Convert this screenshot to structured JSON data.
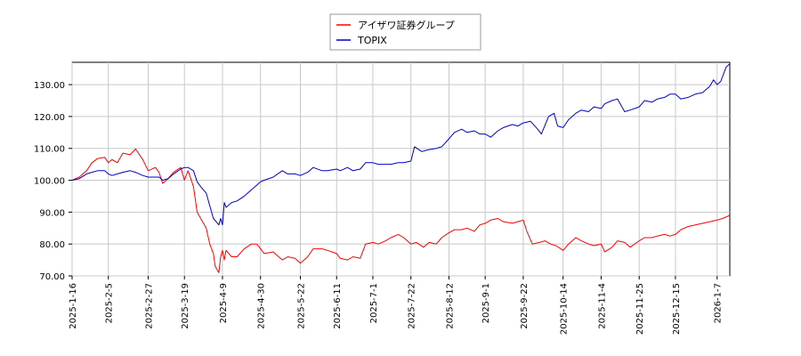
{
  "chart_data": {
    "type": "line",
    "title": "",
    "xlabel": "",
    "ylabel": "",
    "ylim": [
      70,
      137
    ],
    "grid": true,
    "legend_position": "top-center",
    "x_ticks": [
      "2025-1-16",
      "2025-2-5",
      "2025-2-27",
      "2025-3-19",
      "2025-4-9",
      "2025-4-30",
      "2025-5-22",
      "2025-6-11",
      "2025-7-1",
      "2025-7-22",
      "2025-8-12",
      "2025-9-1",
      "2025-9-22",
      "2025-10-14",
      "2025-11-4",
      "2025-11-25",
      "2025-12-15",
      "2026-1-7"
    ],
    "y_ticks": [
      "70.00",
      "80.00",
      "90.00",
      "100.00",
      "110.00",
      "120.00",
      "130.00"
    ],
    "series": [
      {
        "name": "アイザワ証券グループ",
        "color": "#ff0000",
        "points": [
          [
            "2025-1-16",
            100
          ],
          [
            "2025-1-20",
            101
          ],
          [
            "2025-1-24",
            103
          ],
          [
            "2025-1-27",
            105.5
          ],
          [
            "2025-1-30",
            106.8
          ],
          [
            "2025-2-3",
            107.2
          ],
          [
            "2025-2-5",
            105.5
          ],
          [
            "2025-2-7",
            106.5
          ],
          [
            "2025-2-10",
            105.5
          ],
          [
            "2025-2-13",
            108.5
          ],
          [
            "2025-2-17",
            108
          ],
          [
            "2025-2-20",
            109.8
          ],
          [
            "2025-2-24",
            106.5
          ],
          [
            "2025-2-27",
            103
          ],
          [
            "2025-3-3",
            104
          ],
          [
            "2025-3-5",
            102.5
          ],
          [
            "2025-3-7",
            99
          ],
          [
            "2025-3-10",
            100.5
          ],
          [
            "2025-3-13",
            102.5
          ],
          [
            "2025-3-17",
            104
          ],
          [
            "2025-3-19",
            100
          ],
          [
            "2025-3-21",
            103
          ],
          [
            "2025-3-24",
            98
          ],
          [
            "2025-3-26",
            90
          ],
          [
            "2025-3-28",
            88
          ],
          [
            "2025-3-31",
            85
          ],
          [
            "2025-4-2",
            80
          ],
          [
            "2025-4-4",
            77
          ],
          [
            "2025-4-5",
            73
          ],
          [
            "2025-4-7",
            71
          ],
          [
            "2025-4-8",
            76
          ],
          [
            "2025-4-9",
            78
          ],
          [
            "2025-4-10",
            75
          ],
          [
            "2025-4-11",
            78
          ],
          [
            "2025-4-14",
            76
          ],
          [
            "2025-4-17",
            76
          ],
          [
            "2025-4-21",
            78.5
          ],
          [
            "2025-4-25",
            80
          ],
          [
            "2025-4-28",
            80
          ],
          [
            "2025-4-30",
            78.5
          ],
          [
            "2025-5-2",
            77
          ],
          [
            "2025-5-7",
            77.5
          ],
          [
            "2025-5-12",
            75
          ],
          [
            "2025-5-15",
            76
          ],
          [
            "2025-5-19",
            75.5
          ],
          [
            "2025-5-22",
            74
          ],
          [
            "2025-5-26",
            76
          ],
          [
            "2025-5-29",
            78.5
          ],
          [
            "2025-6-3",
            78.5
          ],
          [
            "2025-6-6",
            78
          ],
          [
            "2025-6-11",
            77
          ],
          [
            "2025-6-13",
            75.5
          ],
          [
            "2025-6-17",
            75
          ],
          [
            "2025-6-20",
            76
          ],
          [
            "2025-6-24",
            75.5
          ],
          [
            "2025-6-27",
            80
          ],
          [
            "2025-7-1",
            80.5
          ],
          [
            "2025-7-4",
            80
          ],
          [
            "2025-7-8",
            81
          ],
          [
            "2025-7-11",
            82
          ],
          [
            "2025-7-15",
            83
          ],
          [
            "2025-7-18",
            82
          ],
          [
            "2025-7-22",
            80
          ],
          [
            "2025-7-25",
            80.5
          ],
          [
            "2025-7-29",
            79
          ],
          [
            "2025-8-1",
            80.5
          ],
          [
            "2025-8-5",
            80
          ],
          [
            "2025-8-8",
            82
          ],
          [
            "2025-8-12",
            83.5
          ],
          [
            "2025-8-15",
            84.5
          ],
          [
            "2025-8-19",
            84.5
          ],
          [
            "2025-8-22",
            85
          ],
          [
            "2025-8-26",
            84
          ],
          [
            "2025-8-29",
            86
          ],
          [
            "2025-9-1",
            86.5
          ],
          [
            "2025-9-4",
            87.5
          ],
          [
            "2025-9-8",
            88
          ],
          [
            "2025-9-11",
            87
          ],
          [
            "2025-9-16",
            86.5
          ],
          [
            "2025-9-19",
            87
          ],
          [
            "2025-9-22",
            87.5
          ],
          [
            "2025-9-24",
            84
          ],
          [
            "2025-9-27",
            80
          ],
          [
            "2025-10-1",
            80.5
          ],
          [
            "2025-10-4",
            81
          ],
          [
            "2025-10-7",
            80
          ],
          [
            "2025-10-10",
            79.5
          ],
          [
            "2025-10-14",
            78
          ],
          [
            "2025-10-17",
            80
          ],
          [
            "2025-10-21",
            82
          ],
          [
            "2025-10-24",
            81
          ],
          [
            "2025-10-28",
            80
          ],
          [
            "2025-10-31",
            79.5
          ],
          [
            "2025-11-4",
            80
          ],
          [
            "2025-11-6",
            77.5
          ],
          [
            "2025-11-10",
            79
          ],
          [
            "2025-11-13",
            81
          ],
          [
            "2025-11-17",
            80.5
          ],
          [
            "2025-11-20",
            79
          ],
          [
            "2025-11-25",
            81
          ],
          [
            "2025-11-28",
            82
          ],
          [
            "2025-12-2",
            82
          ],
          [
            "2025-12-5",
            82.5
          ],
          [
            "2025-12-9",
            83
          ],
          [
            "2025-12-12",
            82.5
          ],
          [
            "2025-12-15",
            83
          ],
          [
            "2025-12-18",
            84.5
          ],
          [
            "2025-12-22",
            85.5
          ],
          [
            "2025-12-26",
            86
          ],
          [
            "2025-12-30",
            86.5
          ],
          [
            "2026-1-3",
            87
          ],
          [
            "2026-1-7",
            87.5
          ],
          [
            "2026-1-10",
            88
          ],
          [
            "2026-1-14",
            89
          ]
        ]
      },
      {
        "name": "TOPIX",
        "color": "#0000cc",
        "points": [
          [
            "2025-1-16",
            100
          ],
          [
            "2025-1-20",
            100.5
          ],
          [
            "2025-1-24",
            102
          ],
          [
            "2025-1-27",
            102.5
          ],
          [
            "2025-1-30",
            103
          ],
          [
            "2025-2-3",
            103
          ],
          [
            "2025-2-5",
            102
          ],
          [
            "2025-2-7",
            101.5
          ],
          [
            "2025-2-10",
            102
          ],
          [
            "2025-2-13",
            102.5
          ],
          [
            "2025-2-17",
            103
          ],
          [
            "2025-2-20",
            102.5
          ],
          [
            "2025-2-24",
            101.5
          ],
          [
            "2025-2-27",
            101
          ],
          [
            "2025-3-3",
            101
          ],
          [
            "2025-3-5",
            101
          ],
          [
            "2025-3-7",
            100
          ],
          [
            "2025-3-10",
            100.5
          ],
          [
            "2025-3-13",
            102
          ],
          [
            "2025-3-17",
            103.5
          ],
          [
            "2025-3-19",
            104
          ],
          [
            "2025-3-21",
            104
          ],
          [
            "2025-3-24",
            103
          ],
          [
            "2025-3-26",
            99.5
          ],
          [
            "2025-3-28",
            98
          ],
          [
            "2025-3-31",
            96
          ],
          [
            "2025-4-2",
            92
          ],
          [
            "2025-4-4",
            88
          ],
          [
            "2025-4-7",
            86
          ],
          [
            "2025-4-8",
            88
          ],
          [
            "2025-4-9",
            86
          ],
          [
            "2025-4-10",
            93
          ],
          [
            "2025-4-11",
            91.5
          ],
          [
            "2025-4-14",
            93
          ],
          [
            "2025-4-17",
            93.5
          ],
          [
            "2025-4-21",
            95
          ],
          [
            "2025-4-25",
            97
          ],
          [
            "2025-4-28",
            98.5
          ],
          [
            "2025-4-30",
            99.5
          ],
          [
            "2025-5-2",
            100
          ],
          [
            "2025-5-7",
            101
          ],
          [
            "2025-5-12",
            103
          ],
          [
            "2025-5-15",
            102
          ],
          [
            "2025-5-19",
            102
          ],
          [
            "2025-5-22",
            101.5
          ],
          [
            "2025-5-26",
            102.5
          ],
          [
            "2025-5-29",
            104
          ],
          [
            "2025-6-3",
            103
          ],
          [
            "2025-6-6",
            103
          ],
          [
            "2025-6-11",
            103.5
          ],
          [
            "2025-6-13",
            103
          ],
          [
            "2025-6-17",
            104
          ],
          [
            "2025-6-20",
            103
          ],
          [
            "2025-6-24",
            103.5
          ],
          [
            "2025-6-27",
            105.5
          ],
          [
            "2025-7-1",
            105.5
          ],
          [
            "2025-7-4",
            105
          ],
          [
            "2025-7-8",
            105
          ],
          [
            "2025-7-11",
            105
          ],
          [
            "2025-7-15",
            105.5
          ],
          [
            "2025-7-18",
            105.5
          ],
          [
            "2025-7-22",
            106
          ],
          [
            "2025-7-24",
            110.5
          ],
          [
            "2025-7-28",
            109
          ],
          [
            "2025-7-31",
            109.5
          ],
          [
            "2025-8-5",
            110
          ],
          [
            "2025-8-8",
            110.5
          ],
          [
            "2025-8-12",
            113
          ],
          [
            "2025-8-15",
            115
          ],
          [
            "2025-8-19",
            116
          ],
          [
            "2025-8-22",
            115
          ],
          [
            "2025-8-26",
            115.5
          ],
          [
            "2025-8-29",
            114.5
          ],
          [
            "2025-9-1",
            114.5
          ],
          [
            "2025-9-4",
            113.5
          ],
          [
            "2025-9-8",
            115.5
          ],
          [
            "2025-9-11",
            116.5
          ],
          [
            "2025-9-16",
            117.5
          ],
          [
            "2025-9-19",
            117
          ],
          [
            "2025-9-22",
            118
          ],
          [
            "2025-9-26",
            118.5
          ],
          [
            "2025-9-30",
            116
          ],
          [
            "2025-10-2",
            114.5
          ],
          [
            "2025-10-6",
            120
          ],
          [
            "2025-10-9",
            121
          ],
          [
            "2025-10-11",
            117
          ],
          [
            "2025-10-14",
            116.5
          ],
          [
            "2025-10-17",
            119
          ],
          [
            "2025-10-21",
            121
          ],
          [
            "2025-10-24",
            122
          ],
          [
            "2025-10-28",
            121.5
          ],
          [
            "2025-10-31",
            123
          ],
          [
            "2025-11-4",
            122.5
          ],
          [
            "2025-11-6",
            124
          ],
          [
            "2025-11-10",
            125
          ],
          [
            "2025-11-13",
            125.5
          ],
          [
            "2025-11-17",
            121.5
          ],
          [
            "2025-11-20",
            122
          ],
          [
            "2025-11-25",
            123
          ],
          [
            "2025-11-28",
            125
          ],
          [
            "2025-12-2",
            124.5
          ],
          [
            "2025-12-5",
            125.5
          ],
          [
            "2025-12-9",
            126
          ],
          [
            "2025-12-12",
            127
          ],
          [
            "2025-12-15",
            127
          ],
          [
            "2025-12-18",
            125.5
          ],
          [
            "2025-12-22",
            126
          ],
          [
            "2025-12-26",
            127
          ],
          [
            "2025-12-30",
            127.5
          ],
          [
            "2026-1-3",
            129.5
          ],
          [
            "2026-1-5",
            131.5
          ],
          [
            "2026-1-7",
            130
          ],
          [
            "2026-1-9",
            131
          ],
          [
            "2026-1-12",
            135.5
          ],
          [
            "2026-1-14",
            136.5
          ]
        ]
      }
    ]
  }
}
